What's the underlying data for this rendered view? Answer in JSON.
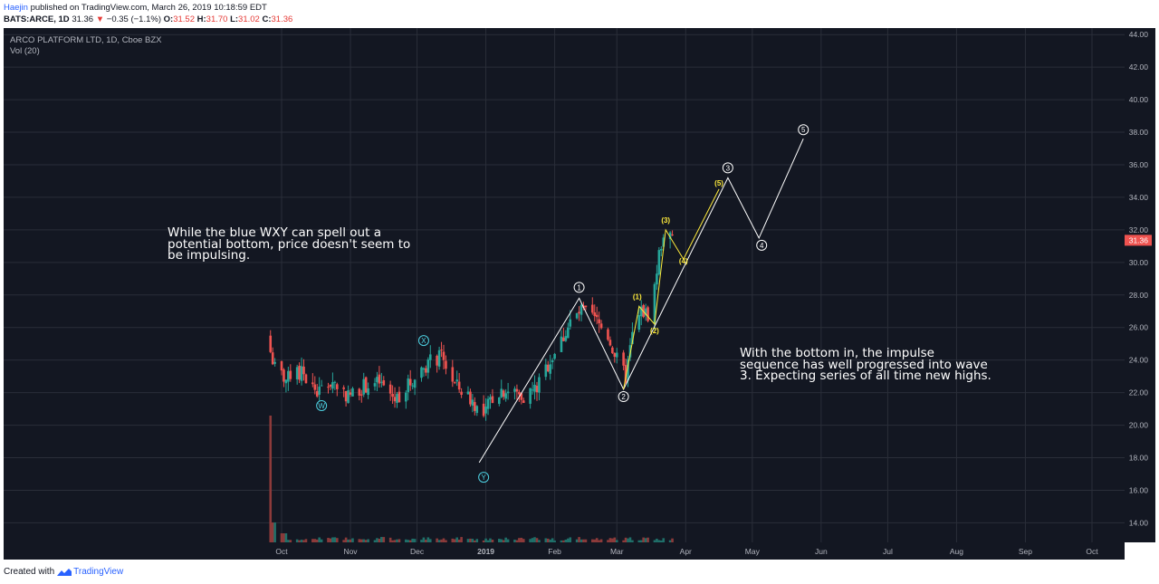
{
  "header": {
    "author": "Haejin",
    "published": "published on TradingView.com, March 26, 2019 10:18:59 EDT",
    "symbol_line_prefix": "BATS:ARCE, 1D",
    "last": "31.36",
    "change": "−0.35 (−1.1%)",
    "open_label": "O:",
    "open": "31.52",
    "high_label": "H:",
    "high": "31.70",
    "low_label": "L:",
    "low": "31.02",
    "close_label": "C:",
    "close": "31.36"
  },
  "chart_title": "ARCO PLATFORM LTD, 1D, Cboe BZX",
  "volume_label": "Vol (20)",
  "annotations": {
    "note1": "While the blue WXY can spell out a\npotential bottom, price doesn't seem to\nbe impulsing.",
    "note2": "With the bottom in, the impulse\nsequence has well progressed into wave\n3. Expecting series of all time new highs."
  },
  "footer": {
    "created_with": "Created with",
    "brand": "TradingView"
  },
  "colors": {
    "background": "#131722",
    "up": "#26a69a",
    "down": "#ef5350",
    "wave_white": "#ffffff",
    "wave_yellow": "#ffeb3b",
    "wave_blue": "#4dd0e1",
    "last_price": "#ef5350"
  },
  "chart_data": {
    "type": "candlestick",
    "title": "ARCO PLATFORM LTD, 1D, Cboe BZX",
    "ylim": [
      12.8,
      44.4
    ],
    "y_ticks": [
      "44.00",
      "42.00",
      "40.00",
      "38.00",
      "36.00",
      "34.00",
      "32.00",
      "30.00",
      "28.00",
      "26.00",
      "24.00",
      "22.00",
      "20.00",
      "18.00",
      "16.00",
      "14.00"
    ],
    "x_ticks": [
      "Oct",
      "Nov",
      "Dec",
      "2019",
      "Feb",
      "Mar",
      "Apr",
      "May",
      "Jun",
      "Jul",
      "Aug",
      "Sep",
      "Oct"
    ],
    "last_price_label": "31.36",
    "price_path": [
      {
        "date": "2018-09-26",
        "price": 24.5
      },
      {
        "date": "2018-09-28",
        "price": 23.5
      },
      {
        "date": "2018-10-03",
        "price": 22.8
      },
      {
        "date": "2018-10-10",
        "price": 23.2
      },
      {
        "date": "2018-10-17",
        "price": 22.0
      },
      {
        "date": "2018-10-24",
        "price": 22.7
      },
      {
        "date": "2018-10-31",
        "price": 21.8
      },
      {
        "date": "2018-11-07",
        "price": 22.4
      },
      {
        "date": "2018-11-14",
        "price": 22.6
      },
      {
        "date": "2018-11-21",
        "price": 21.6
      },
      {
        "date": "2018-11-28",
        "price": 22.6
      },
      {
        "date": "2018-12-03",
        "price": 23.5
      },
      {
        "date": "2018-12-07",
        "price": 23.9
      },
      {
        "date": "2018-12-12",
        "price": 24.2
      },
      {
        "date": "2018-12-18",
        "price": 22.5
      },
      {
        "date": "2018-12-26",
        "price": 21.5
      },
      {
        "date": "2018-12-31",
        "price": 20.4
      },
      {
        "date": "2019-01-03",
        "price": 21.6
      },
      {
        "date": "2019-01-08",
        "price": 22.2
      },
      {
        "date": "2019-01-14",
        "price": 22.0
      },
      {
        "date": "2019-01-18",
        "price": 21.8
      },
      {
        "date": "2019-01-24",
        "price": 22.3
      },
      {
        "date": "2019-01-30",
        "price": 24.0
      },
      {
        "date": "2019-02-04",
        "price": 25.2
      },
      {
        "date": "2019-02-08",
        "price": 26.3
      },
      {
        "date": "2019-02-13",
        "price": 27.0
      },
      {
        "date": "2019-02-19",
        "price": 26.5
      },
      {
        "date": "2019-02-25",
        "price": 25.5
      },
      {
        "date": "2019-03-01",
        "price": 24.0
      },
      {
        "date": "2019-03-05",
        "price": 23.0
      },
      {
        "date": "2019-03-08",
        "price": 25.5
      },
      {
        "date": "2019-03-12",
        "price": 27.0
      },
      {
        "date": "2019-03-15",
        "price": 26.8
      },
      {
        "date": "2019-03-18",
        "price": 28.5
      },
      {
        "date": "2019-03-20",
        "price": 30.5
      },
      {
        "date": "2019-03-22",
        "price": 31.8
      },
      {
        "date": "2019-03-26",
        "price": 31.36
      }
    ],
    "volume_spike": {
      "date": "2018-09-26",
      "note": "IPO day volume"
    },
    "wave_labels": {
      "white": [
        {
          "label": "1",
          "date": "2019-02-12",
          "price": 27.8
        },
        {
          "label": "2",
          "date": "2019-03-04",
          "price": 22.2
        },
        {
          "label": "3",
          "date": "2019-04-20",
          "price": 35.2
        },
        {
          "label": "4",
          "date": "2019-05-04",
          "price": 31.5
        },
        {
          "label": "5",
          "date": "2019-05-24",
          "price": 37.6
        }
      ],
      "yellow": [
        {
          "label": "(1)",
          "date": "2019-03-11",
          "price": 27.3
        },
        {
          "label": "(2)",
          "date": "2019-03-18",
          "price": 26.2
        },
        {
          "label": "(3)",
          "date": "2019-03-23",
          "price": 32.0
        },
        {
          "label": "(4)",
          "date": "2019-03-31",
          "price": 30.2
        },
        {
          "label": "(5)",
          "date": "2019-04-16",
          "price": 34.5
        }
      ],
      "blue": [
        {
          "label": "W",
          "date": "2018-10-19"
        },
        {
          "label": "X",
          "date": "2018-12-04"
        },
        {
          "label": "Y",
          "date": "2018-12-31"
        }
      ]
    }
  }
}
